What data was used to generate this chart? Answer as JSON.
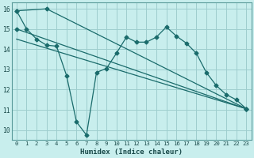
{
  "xlabel": "Humidex (Indice chaleur)",
  "bg_color": "#c8eeed",
  "grid_color": "#9ecece",
  "line_color": "#1a6b6b",
  "xlim": [
    -0.5,
    23.5
  ],
  "ylim": [
    9.5,
    16.3
  ],
  "yticks": [
    10,
    11,
    12,
    13,
    14,
    15,
    16
  ],
  "xticks": [
    0,
    1,
    2,
    3,
    4,
    5,
    6,
    7,
    8,
    9,
    10,
    11,
    12,
    13,
    14,
    15,
    16,
    17,
    18,
    19,
    20,
    21,
    22,
    23
  ],
  "line1_x": [
    0,
    1,
    2,
    3,
    4,
    5,
    6,
    7,
    8,
    9,
    10,
    11,
    12,
    13,
    14,
    15,
    16,
    17,
    18,
    19,
    20,
    21,
    22,
    23
  ],
  "line1_y": [
    15.9,
    15.0,
    14.5,
    14.2,
    14.15,
    12.7,
    10.4,
    9.75,
    12.85,
    13.05,
    13.8,
    14.6,
    14.35,
    14.35,
    14.6,
    15.1,
    14.65,
    14.3,
    13.8,
    12.85,
    12.2,
    11.75,
    11.5,
    11.05
  ],
  "line2_x": [
    0,
    3,
    23
  ],
  "line2_y": [
    15.9,
    16.0,
    11.05
  ],
  "line3_x": [
    0,
    23
  ],
  "line3_y": [
    15.0,
    11.05
  ],
  "line4_x": [
    0,
    23
  ],
  "line4_y": [
    14.5,
    11.05
  ]
}
